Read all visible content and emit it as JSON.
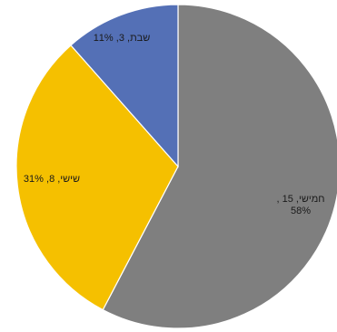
{
  "chart_data": {
    "type": "pie",
    "title": "",
    "slices": [
      {
        "label": "חמישי",
        "value": 15,
        "percent": "58%",
        "label_lines": [
          "חמישי, 15 ,",
          "58%"
        ],
        "color": "#7f7f7f"
      },
      {
        "label": "שישי",
        "value": 8,
        "percent": "31%",
        "label_lines": [
          "שישי, 8, 31%"
        ],
        "color": "#f5c000"
      },
      {
        "label": "שבת",
        "value": 3,
        "percent": "11%",
        "label_lines": [
          "שבת, 3, 11%"
        ],
        "color": "#5470b6"
      }
    ]
  }
}
